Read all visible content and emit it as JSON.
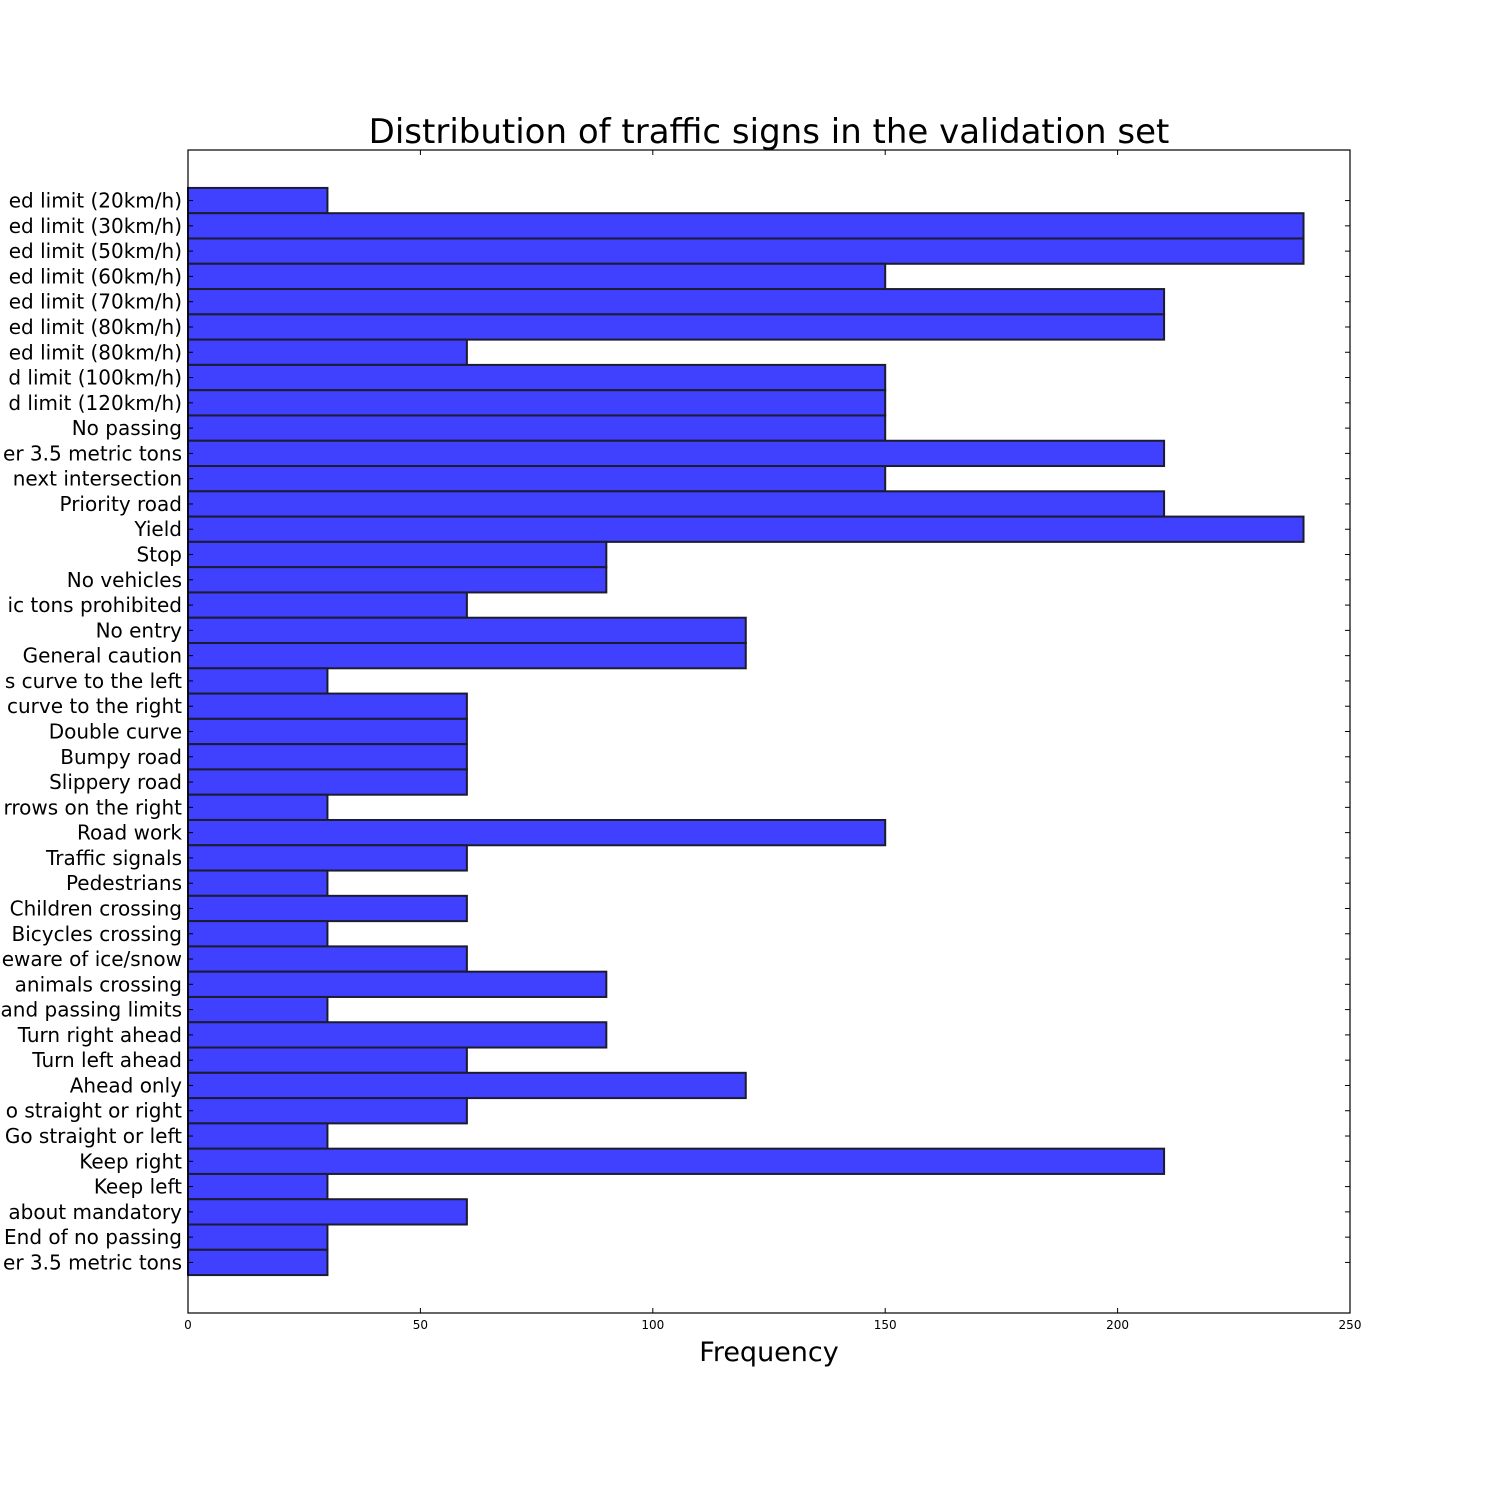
{
  "chart_data": {
    "type": "bar",
    "orientation": "horizontal",
    "title": "Distribution of traffic signs in the validation set",
    "xlabel": "Frequency",
    "ylabel": "",
    "xlim": [
      0,
      250
    ],
    "xticks": [
      "0",
      "50",
      "100",
      "150",
      "200",
      "250"
    ],
    "grid": false,
    "legend": "none",
    "bar_color": "#4040ff",
    "categories": [
      "ed limit (20km/h)",
      "ed limit (30km/h)",
      "ed limit (50km/h)",
      "ed limit (60km/h)",
      "ed limit (70km/h)",
      "ed limit (80km/h)",
      "ed limit (80km/h)",
      "d limit (100km/h)",
      "d limit (120km/h)",
      "No passing",
      "er 3.5 metric tons",
      " next intersection",
      "Priority road",
      "Yield",
      "Stop",
      "No vehicles",
      "ic tons prohibited",
      "No entry",
      "General caution",
      "s curve to the left",
      "curve to the right",
      "Double curve",
      "Bumpy road",
      "Slippery road",
      "rrows on the right",
      "Road work",
      "Traffic signals",
      "Pedestrians",
      "Children crossing",
      "Bicycles crossing",
      "eware of ice/snow",
      " animals crossing",
      "and passing limits",
      "Turn right ahead",
      "Turn left ahead",
      "Ahead only",
      "o straight or right",
      "Go straight or left",
      "Keep right",
      "Keep left",
      "about mandatory",
      "End of no passing",
      "er 3.5 metric tons"
    ],
    "values": [
      30,
      240,
      240,
      150,
      210,
      210,
      60,
      150,
      150,
      150,
      210,
      150,
      210,
      240,
      90,
      90,
      60,
      120,
      120,
      30,
      60,
      60,
      60,
      60,
      30,
      150,
      60,
      30,
      60,
      30,
      60,
      90,
      30,
      90,
      60,
      120,
      60,
      30,
      210,
      30,
      60,
      30,
      30
    ]
  }
}
